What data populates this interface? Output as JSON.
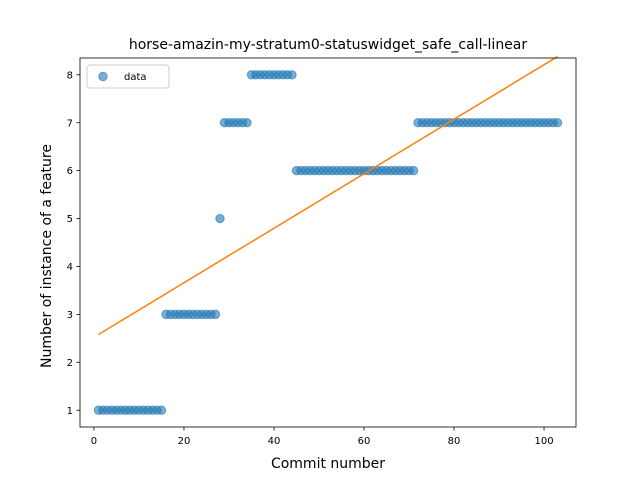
{
  "chart_data": {
    "type": "scatter",
    "title": "horse-amazin-my-stratum0-statuswidget_safe_call-linear",
    "xlabel": "Commit number",
    "ylabel": "Number of instance of a feature",
    "xlim": [
      -3.1,
      107.1
    ],
    "ylim": [
      0.65,
      8.35
    ],
    "xticks": [
      0,
      20,
      40,
      60,
      80,
      100
    ],
    "yticks": [
      1,
      2,
      3,
      4,
      5,
      6,
      7,
      8
    ],
    "grid": false,
    "legend_position": "upper left",
    "series": [
      {
        "name": "data",
        "kind": "scatter",
        "color": "#1f77b4",
        "points": [
          [
            1,
            1
          ],
          [
            2,
            1
          ],
          [
            3,
            1
          ],
          [
            4,
            1
          ],
          [
            5,
            1
          ],
          [
            6,
            1
          ],
          [
            7,
            1
          ],
          [
            8,
            1
          ],
          [
            9,
            1
          ],
          [
            10,
            1
          ],
          [
            11,
            1
          ],
          [
            12,
            1
          ],
          [
            13,
            1
          ],
          [
            14,
            1
          ],
          [
            15,
            1
          ],
          [
            16,
            3
          ],
          [
            17,
            3
          ],
          [
            18,
            3
          ],
          [
            19,
            3
          ],
          [
            20,
            3
          ],
          [
            21,
            3
          ],
          [
            22,
            3
          ],
          [
            23,
            3
          ],
          [
            24,
            3
          ],
          [
            25,
            3
          ],
          [
            26,
            3
          ],
          [
            27,
            3
          ],
          [
            28,
            5
          ],
          [
            29,
            7
          ],
          [
            30,
            7
          ],
          [
            31,
            7
          ],
          [
            32,
            7
          ],
          [
            33,
            7
          ],
          [
            34,
            7
          ],
          [
            35,
            8
          ],
          [
            36,
            8
          ],
          [
            37,
            8
          ],
          [
            38,
            8
          ],
          [
            39,
            8
          ],
          [
            40,
            8
          ],
          [
            41,
            8
          ],
          [
            42,
            8
          ],
          [
            43,
            8
          ],
          [
            44,
            8
          ],
          [
            45,
            6
          ],
          [
            46,
            6
          ],
          [
            47,
            6
          ],
          [
            48,
            6
          ],
          [
            49,
            6
          ],
          [
            50,
            6
          ],
          [
            51,
            6
          ],
          [
            52,
            6
          ],
          [
            53,
            6
          ],
          [
            54,
            6
          ],
          [
            55,
            6
          ],
          [
            56,
            6
          ],
          [
            57,
            6
          ],
          [
            58,
            6
          ],
          [
            59,
            6
          ],
          [
            60,
            6
          ],
          [
            61,
            6
          ],
          [
            62,
            6
          ],
          [
            63,
            6
          ],
          [
            64,
            6
          ],
          [
            65,
            6
          ],
          [
            66,
            6
          ],
          [
            67,
            6
          ],
          [
            68,
            6
          ],
          [
            69,
            6
          ],
          [
            70,
            6
          ],
          [
            71,
            6
          ],
          [
            72,
            7
          ],
          [
            73,
            7
          ],
          [
            74,
            7
          ],
          [
            75,
            7
          ],
          [
            76,
            7
          ],
          [
            77,
            7
          ],
          [
            78,
            7
          ],
          [
            79,
            7
          ],
          [
            80,
            7
          ],
          [
            81,
            7
          ],
          [
            82,
            7
          ],
          [
            83,
            7
          ],
          [
            84,
            7
          ],
          [
            85,
            7
          ],
          [
            86,
            7
          ],
          [
            87,
            7
          ],
          [
            88,
            7
          ],
          [
            89,
            7
          ],
          [
            90,
            7
          ],
          [
            91,
            7
          ],
          [
            92,
            7
          ],
          [
            93,
            7
          ],
          [
            94,
            7
          ],
          [
            95,
            7
          ],
          [
            96,
            7
          ],
          [
            97,
            7
          ],
          [
            98,
            7
          ],
          [
            99,
            7
          ],
          [
            100,
            7
          ],
          [
            101,
            7
          ],
          [
            102,
            7
          ],
          [
            103,
            7
          ]
        ]
      },
      {
        "kind": "line",
        "color": "#ff7f0e",
        "points": [
          [
            1,
            2.58
          ],
          [
            103,
            8.38
          ]
        ]
      }
    ]
  }
}
